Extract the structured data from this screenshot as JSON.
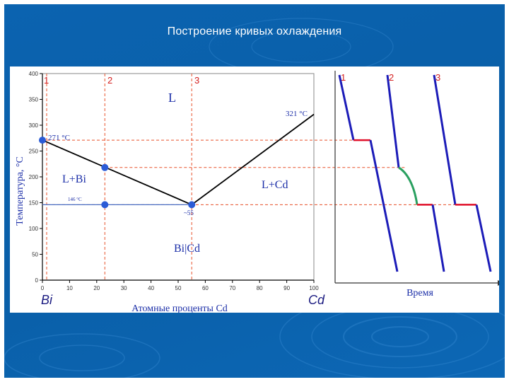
{
  "slide": {
    "title": "Построение кривых охлаждения"
  },
  "colors": {
    "background": "#0b63b0",
    "phase_line": "#000000",
    "guide_line": "#e8502a",
    "point": "#2b5bd6",
    "cooling_curve": "#1c1cb8",
    "plateau": "#e0102a",
    "gradual_segment": "#2aa060"
  },
  "phase_diagram": {
    "y_axis_label": "Температура, °С",
    "x_axis_label": "Атомные проценты Cd",
    "element_left": "Bi",
    "element_right": "Cd",
    "region_liquid": "L",
    "region_left": "L+Bi",
    "region_right": "L+Cd",
    "region_solid": "Bi|Cd",
    "temp_bi_label": "271 °C",
    "temp_cd_label": "321 °C",
    "eutectic_temp_label": "146 °C",
    "eutectic_comp_label": "~55",
    "alloy_labels": [
      "1",
      "2",
      "3"
    ],
    "y_ticks": [
      0,
      50,
      100,
      150,
      200,
      250,
      300,
      350,
      400
    ],
    "x_ticks": [
      0,
      10,
      20,
      30,
      40,
      50,
      60,
      70,
      80,
      90,
      100
    ],
    "ylim": [
      0,
      400
    ],
    "xlim": [
      0,
      100
    ],
    "liquidus_left": [
      [
        0,
        271
      ],
      [
        55,
        146
      ]
    ],
    "liquidus_right": [
      [
        55,
        146
      ],
      [
        100,
        321
      ]
    ],
    "eutectic_line": [
      [
        0,
        146
      ],
      [
        100,
        146
      ]
    ],
    "alloy_compositions": [
      0,
      23,
      55
    ],
    "points": [
      [
        0,
        271
      ],
      [
        23,
        218
      ],
      [
        23,
        146
      ],
      [
        55,
        146
      ]
    ]
  },
  "cooling_curves": {
    "x_axis_label": "Время",
    "curve_labels": [
      "1",
      "2",
      "3"
    ]
  }
}
